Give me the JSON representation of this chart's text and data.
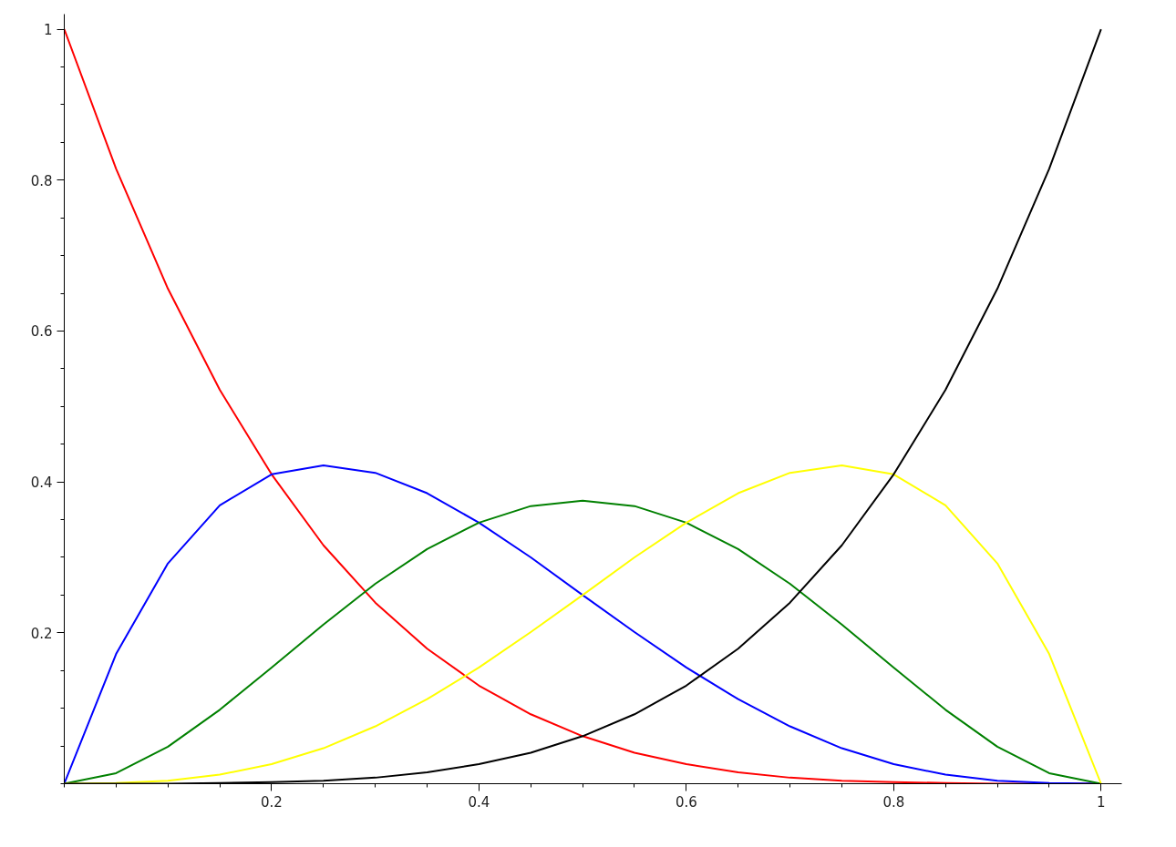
{
  "chart_data": {
    "type": "line",
    "x": [
      0,
      0.05,
      0.1,
      0.15,
      0.2,
      0.25,
      0.3,
      0.35,
      0.4,
      0.45,
      0.5,
      0.55,
      0.6,
      0.65,
      0.7,
      0.75,
      0.8,
      0.85,
      0.9,
      0.95,
      1
    ],
    "series": [
      {
        "color": "#ff0000",
        "values": [
          1,
          0.815,
          0.656,
          0.522,
          0.41,
          0.316,
          0.24,
          0.179,
          0.13,
          0.092,
          0.063,
          0.041,
          0.026,
          0.015,
          0.008,
          0.004,
          0.002,
          0.001,
          0.0,
          0.0,
          0
        ]
      },
      {
        "color": "#0000ff",
        "values": [
          0,
          0.172,
          0.292,
          0.369,
          0.41,
          0.422,
          0.412,
          0.385,
          0.346,
          0.3,
          0.25,
          0.201,
          0.154,
          0.112,
          0.076,
          0.047,
          0.026,
          0.012,
          0.004,
          0.001,
          0
        ]
      },
      {
        "color": "#008000",
        "values": [
          0,
          0.014,
          0.049,
          0.098,
          0.154,
          0.211,
          0.265,
          0.311,
          0.346,
          0.368,
          0.375,
          0.368,
          0.346,
          0.311,
          0.265,
          0.211,
          0.154,
          0.098,
          0.049,
          0.014,
          0
        ]
      },
      {
        "color": "#ffff00",
        "values": [
          0,
          0.001,
          0.004,
          0.012,
          0.026,
          0.047,
          0.076,
          0.112,
          0.154,
          0.201,
          0.25,
          0.3,
          0.346,
          0.385,
          0.412,
          0.422,
          0.41,
          0.369,
          0.292,
          0.172,
          0
        ]
      },
      {
        "color": "#000000",
        "values": [
          0,
          0.0,
          0.0,
          0.001,
          0.002,
          0.004,
          0.008,
          0.015,
          0.026,
          0.041,
          0.063,
          0.092,
          0.13,
          0.179,
          0.24,
          0.316,
          0.41,
          0.522,
          0.656,
          0.815,
          1
        ]
      }
    ],
    "xlim": [
      0,
      1.02
    ],
    "ylim": [
      0,
      1.02
    ],
    "xticks": [
      0.2,
      0.4,
      0.6,
      0.8,
      1
    ],
    "yticks": [
      0.2,
      0.4,
      0.6,
      0.8,
      1
    ],
    "grid": false,
    "marker": "none",
    "line_style": "solid"
  }
}
